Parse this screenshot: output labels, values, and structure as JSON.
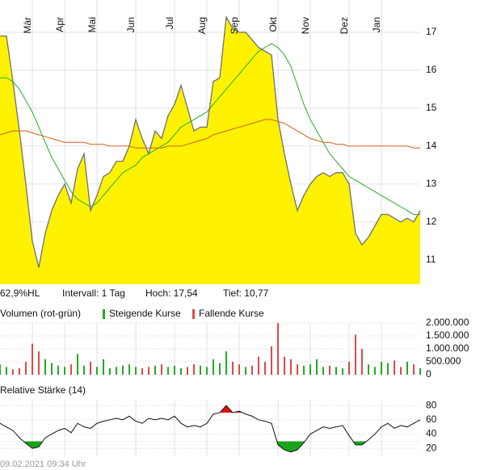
{
  "chart_data": [
    {
      "type": "area",
      "categories": [
        null,
        null,
        null,
        null,
        null,
        "Mär",
        null,
        null,
        null,
        null,
        "Apr",
        null,
        null,
        null,
        null,
        "Mai",
        null,
        null,
        null,
        null,
        null,
        "Jun",
        null,
        null,
        null,
        null,
        null,
        "Jul",
        null,
        null,
        null,
        null,
        "Aug",
        null,
        null,
        null,
        null,
        "Sep",
        null,
        null,
        null,
        null,
        null,
        "Okt",
        null,
        null,
        null,
        null,
        "Nov",
        null,
        null,
        null,
        null,
        null,
        "Dez",
        null,
        null,
        null,
        null,
        "Jan",
        null,
        null,
        null,
        null,
        null,
        null
      ],
      "values": [
        16.9,
        16.9,
        15.7,
        14.4,
        13.0,
        11.5,
        10.8,
        11.7,
        12.3,
        12.7,
        13.0,
        12.5,
        13.4,
        13.8,
        12.3,
        12.7,
        13.2,
        13.3,
        13.6,
        13.6,
        14.0,
        14.7,
        14.2,
        13.8,
        14.4,
        14.2,
        14.8,
        15.1,
        15.6,
        15.0,
        14.4,
        14.5,
        14.5,
        15.7,
        15.8,
        17.4,
        17.1,
        17.0,
        17.0,
        16.8,
        16.6,
        16.5,
        16.4,
        14.7,
        13.8,
        13.0,
        12.3,
        12.7,
        13.0,
        13.2,
        13.3,
        13.2,
        13.3,
        13.3,
        13.0,
        11.7,
        11.4,
        11.6,
        11.9,
        12.2,
        12.2,
        12.1,
        12.0,
        12.1,
        12.0,
        12.3
      ],
      "color": "#fff200",
      "line_color": "#707070",
      "moving_averages": [
        {
          "color": "#22b022",
          "values": [
            15.8,
            15.8,
            15.7,
            15.5,
            15.2,
            14.9,
            14.5,
            14.1,
            13.7,
            13.4,
            13.1,
            12.8,
            12.6,
            12.5,
            12.4,
            12.5,
            12.7,
            12.9,
            13.1,
            13.3,
            13.4,
            13.5,
            13.7,
            13.8,
            13.9,
            14.0,
            14.1,
            14.3,
            14.5,
            14.6,
            14.7,
            14.8,
            14.9,
            15.1,
            15.3,
            15.5,
            15.7,
            15.9,
            16.1,
            16.3,
            16.5,
            16.6,
            16.7,
            16.6,
            16.4,
            16.1,
            15.6,
            15.1,
            14.7,
            14.4,
            14.1,
            13.8,
            13.6,
            13.4,
            13.2,
            13.1,
            13.0,
            12.9,
            12.8,
            12.7,
            12.6,
            12.5,
            12.4,
            12.3,
            12.2,
            12.2
          ]
        },
        {
          "color": "#d2601a",
          "values": [
            14.3,
            14.35,
            14.4,
            14.4,
            14.4,
            14.35,
            14.3,
            14.25,
            14.2,
            14.15,
            14.1,
            14.1,
            14.1,
            14.1,
            14.05,
            14.05,
            14.05,
            14.0,
            14.0,
            14.0,
            14.0,
            13.95,
            13.95,
            13.95,
            13.95,
            13.95,
            14.0,
            14.0,
            14.0,
            14.05,
            14.1,
            14.15,
            14.2,
            14.3,
            14.35,
            14.4,
            14.45,
            14.5,
            14.55,
            14.6,
            14.65,
            14.7,
            14.7,
            14.65,
            14.6,
            14.5,
            14.4,
            14.3,
            14.2,
            14.15,
            14.1,
            14.1,
            14.05,
            14.05,
            14.0,
            14.0,
            14.0,
            14.0,
            14.0,
            14.0,
            14.0,
            14.0,
            14.0,
            14.0,
            13.95,
            13.95
          ]
        }
      ],
      "ylim": [
        10.36,
        17.85
      ],
      "yticks": [
        11,
        12,
        13,
        14,
        15,
        16,
        17
      ],
      "grid": true,
      "stats": [
        "62,9%HL",
        "Intervall: 1 Tag",
        "Hoch: 17,54",
        "Tief: 10,77"
      ]
    },
    {
      "type": "bar",
      "title": "Volumen (rot-grün)",
      "series": [
        {
          "name": "Steigende Kurse",
          "color": "#22aa22",
          "values": [
            400000,
            300000,
            null,
            null,
            null,
            null,
            null,
            600000,
            450000,
            350000,
            300000,
            null,
            800000,
            350000,
            null,
            300000,
            600000,
            250000,
            300000,
            350000,
            400000,
            300000,
            null,
            null,
            350000,
            null,
            300000,
            350000,
            250000,
            null,
            null,
            350000,
            300000,
            600000,
            450000,
            900000,
            null,
            null,
            300000,
            null,
            null,
            null,
            null,
            null,
            null,
            null,
            null,
            350000,
            400000,
            600000,
            300000,
            null,
            300000,
            250000,
            null,
            null,
            null,
            400000,
            300000,
            500000,
            450000,
            null,
            null,
            500000,
            null,
            250000
          ]
        },
        {
          "name": "Fallende Kurse",
          "color": "#e04848",
          "values": [
            null,
            null,
            200000,
            250000,
            500000,
            1200000,
            900000,
            null,
            null,
            null,
            null,
            400000,
            null,
            null,
            500000,
            null,
            null,
            null,
            null,
            null,
            null,
            null,
            250000,
            300000,
            null,
            400000,
            null,
            null,
            null,
            300000,
            400000,
            null,
            null,
            null,
            null,
            null,
            500000,
            400000,
            null,
            350000,
            700000,
            500000,
            1100000,
            2000000,
            700000,
            600000,
            400000,
            null,
            null,
            null,
            null,
            350000,
            null,
            null,
            500000,
            1550000,
            1000000,
            null,
            null,
            null,
            null,
            550000,
            300000,
            null,
            400000,
            null
          ]
        }
      ],
      "ylim": [
        0,
        2000000
      ],
      "yticks": [
        0,
        {
          "value": 500000,
          "label": "500.000"
        },
        {
          "value": 1000000,
          "label": "1.000.000"
        },
        {
          "value": 1500000,
          "label": "1.500.000"
        },
        {
          "value": 2000000,
          "label": "2.000.000"
        }
      ],
      "grid": true
    },
    {
      "type": "line",
      "title": "Relative Stärke (14)",
      "values": [
        55,
        50,
        45,
        35,
        27,
        20,
        22,
        35,
        40,
        45,
        48,
        42,
        55,
        50,
        48,
        55,
        58,
        60,
        62,
        60,
        65,
        58,
        55,
        62,
        60,
        62,
        60,
        65,
        55,
        50,
        52,
        50,
        55,
        68,
        70,
        80,
        70,
        72,
        68,
        65,
        60,
        58,
        55,
        25,
        18,
        15,
        18,
        28,
        40,
        45,
        50,
        48,
        50,
        52,
        38,
        25,
        25,
        32,
        40,
        50,
        55,
        48,
        52,
        50,
        55,
        60
      ],
      "color": "#111111",
      "bands": [
        30,
        70
      ],
      "band_colors": [
        "#1aa31a",
        "#dd1111"
      ],
      "ylim": [
        9,
        88
      ],
      "yticks": [
        20,
        40,
        60,
        80
      ],
      "grid": true
    }
  ],
  "timestamp": "09.02.2021 09:34 Uhr"
}
